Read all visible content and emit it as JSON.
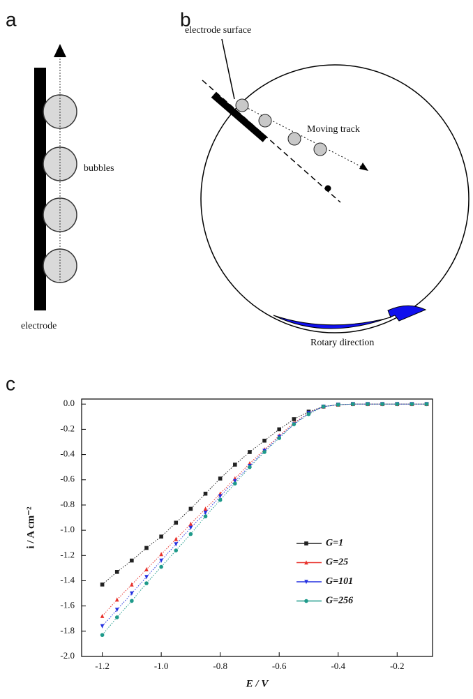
{
  "panel_labels": [
    "a",
    "b",
    "c"
  ],
  "diagram_a": {
    "bubbles_label": "bubbles",
    "electrode_label": "electrode"
  },
  "diagram_b": {
    "surface_label": "electrode surface",
    "track_label": "Moving track",
    "rotation_label": "Rotary direction"
  },
  "chart_data": {
    "type": "line",
    "x_label": "E / V",
    "y_label": "i / A cm⁻²",
    "x": [
      -1.2,
      -1.15,
      -1.1,
      -1.05,
      -1.0,
      -0.95,
      -0.9,
      -0.85,
      -0.8,
      -0.75,
      -0.7,
      -0.65,
      -0.6,
      -0.55,
      -0.5,
      -0.45,
      -0.4,
      -0.35,
      -0.3,
      -0.25,
      -0.2,
      -0.15,
      -0.1
    ],
    "series": [
      {
        "name": "G=1",
        "color": "#222222",
        "marker": "square",
        "values": [
          -1.43,
          -1.33,
          -1.24,
          -1.14,
          -1.05,
          -0.94,
          -0.83,
          -0.71,
          -0.59,
          -0.48,
          -0.38,
          -0.29,
          -0.2,
          -0.12,
          -0.06,
          -0.02,
          -0.005,
          0,
          0,
          0,
          0,
          0,
          0
        ]
      },
      {
        "name": "G=25",
        "color": "#e8322c",
        "marker": "triangle-up",
        "values": [
          -1.68,
          -1.55,
          -1.43,
          -1.31,
          -1.19,
          -1.07,
          -0.95,
          -0.83,
          -0.71,
          -0.59,
          -0.47,
          -0.36,
          -0.25,
          -0.15,
          -0.07,
          -0.02,
          -0.005,
          0,
          0,
          0,
          0,
          0,
          0
        ]
      },
      {
        "name": "G=101",
        "color": "#2431e0",
        "marker": "triangle-down",
        "values": [
          -1.76,
          -1.63,
          -1.5,
          -1.37,
          -1.24,
          -1.11,
          -0.98,
          -0.86,
          -0.73,
          -0.61,
          -0.49,
          -0.37,
          -0.26,
          -0.16,
          -0.07,
          -0.02,
          -0.005,
          0,
          0,
          0,
          0,
          0,
          0
        ]
      },
      {
        "name": "G=256",
        "color": "#1e9a8a",
        "marker": "circle",
        "values": [
          -1.83,
          -1.69,
          -1.56,
          -1.42,
          -1.29,
          -1.16,
          -1.03,
          -0.89,
          -0.76,
          -0.63,
          -0.5,
          -0.38,
          -0.27,
          -0.16,
          -0.08,
          -0.02,
          -0.005,
          0,
          0,
          0,
          0,
          0,
          0
        ]
      }
    ],
    "xlim": [
      -1.27,
      -0.08
    ],
    "ylim": [
      -2.0,
      0.04
    ],
    "xticks": [
      -1.2,
      {
        "value": -1.0,
        "label": "-1.0"
      },
      -0.8,
      -0.6,
      -0.4,
      -0.2
    ],
    "yticks": [
      {
        "value": 0,
        "label": "0.0"
      },
      -0.2,
      -0.4,
      -0.6,
      -0.8,
      {
        "value": -1.0,
        "label": "-1.0"
      },
      -1.2,
      -1.4,
      -1.6,
      -1.8,
      {
        "value": -2.0,
        "label": "-2.0"
      }
    ],
    "grid": false,
    "legend_position": "right"
  }
}
